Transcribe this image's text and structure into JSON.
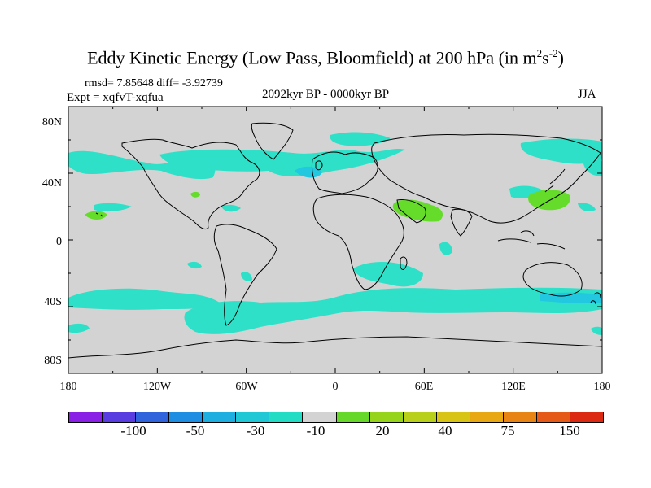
{
  "title": {
    "main": "Eddy Kinetic Energy (Low Pass, Bloomfield) at 200 hPa (in m",
    "sup1": "2",
    "mid": "s",
    "sup2": "-2",
    "end": ")"
  },
  "stats": "rmsd= 7.85648 diff= -3.92739",
  "expt": "Expt = xqfvT-xqfua",
  "period": "2092kyr BP - 0000kyr BP",
  "season": "JJA",
  "lat_labels": [
    "80N",
    "40N",
    "0",
    "40S",
    "80S"
  ],
  "lon_labels": [
    "180",
    "120W",
    "60W",
    "0",
    "60E",
    "120E",
    "180"
  ],
  "colorbar": {
    "colors": [
      "#8a1fe6",
      "#5a3de0",
      "#2f64dc",
      "#1e8ee2",
      "#1eaee0",
      "#20c8d6",
      "#22dcc4",
      "#d3d3d3",
      "#66d82a",
      "#96d41c",
      "#b8d01a",
      "#d8c414",
      "#e8a812",
      "#e88414",
      "#e45a16",
      "#dc2a12"
    ],
    "labels": [
      "-100",
      "-50",
      "-30",
      "-10",
      "20",
      "40",
      "75",
      "150"
    ]
  },
  "map_colors": {
    "background": "#d3d3d3",
    "teal": "#2ee0c8",
    "cyan": "#22c8e0",
    "green": "#66dc2a",
    "coast": "#000000"
  }
}
